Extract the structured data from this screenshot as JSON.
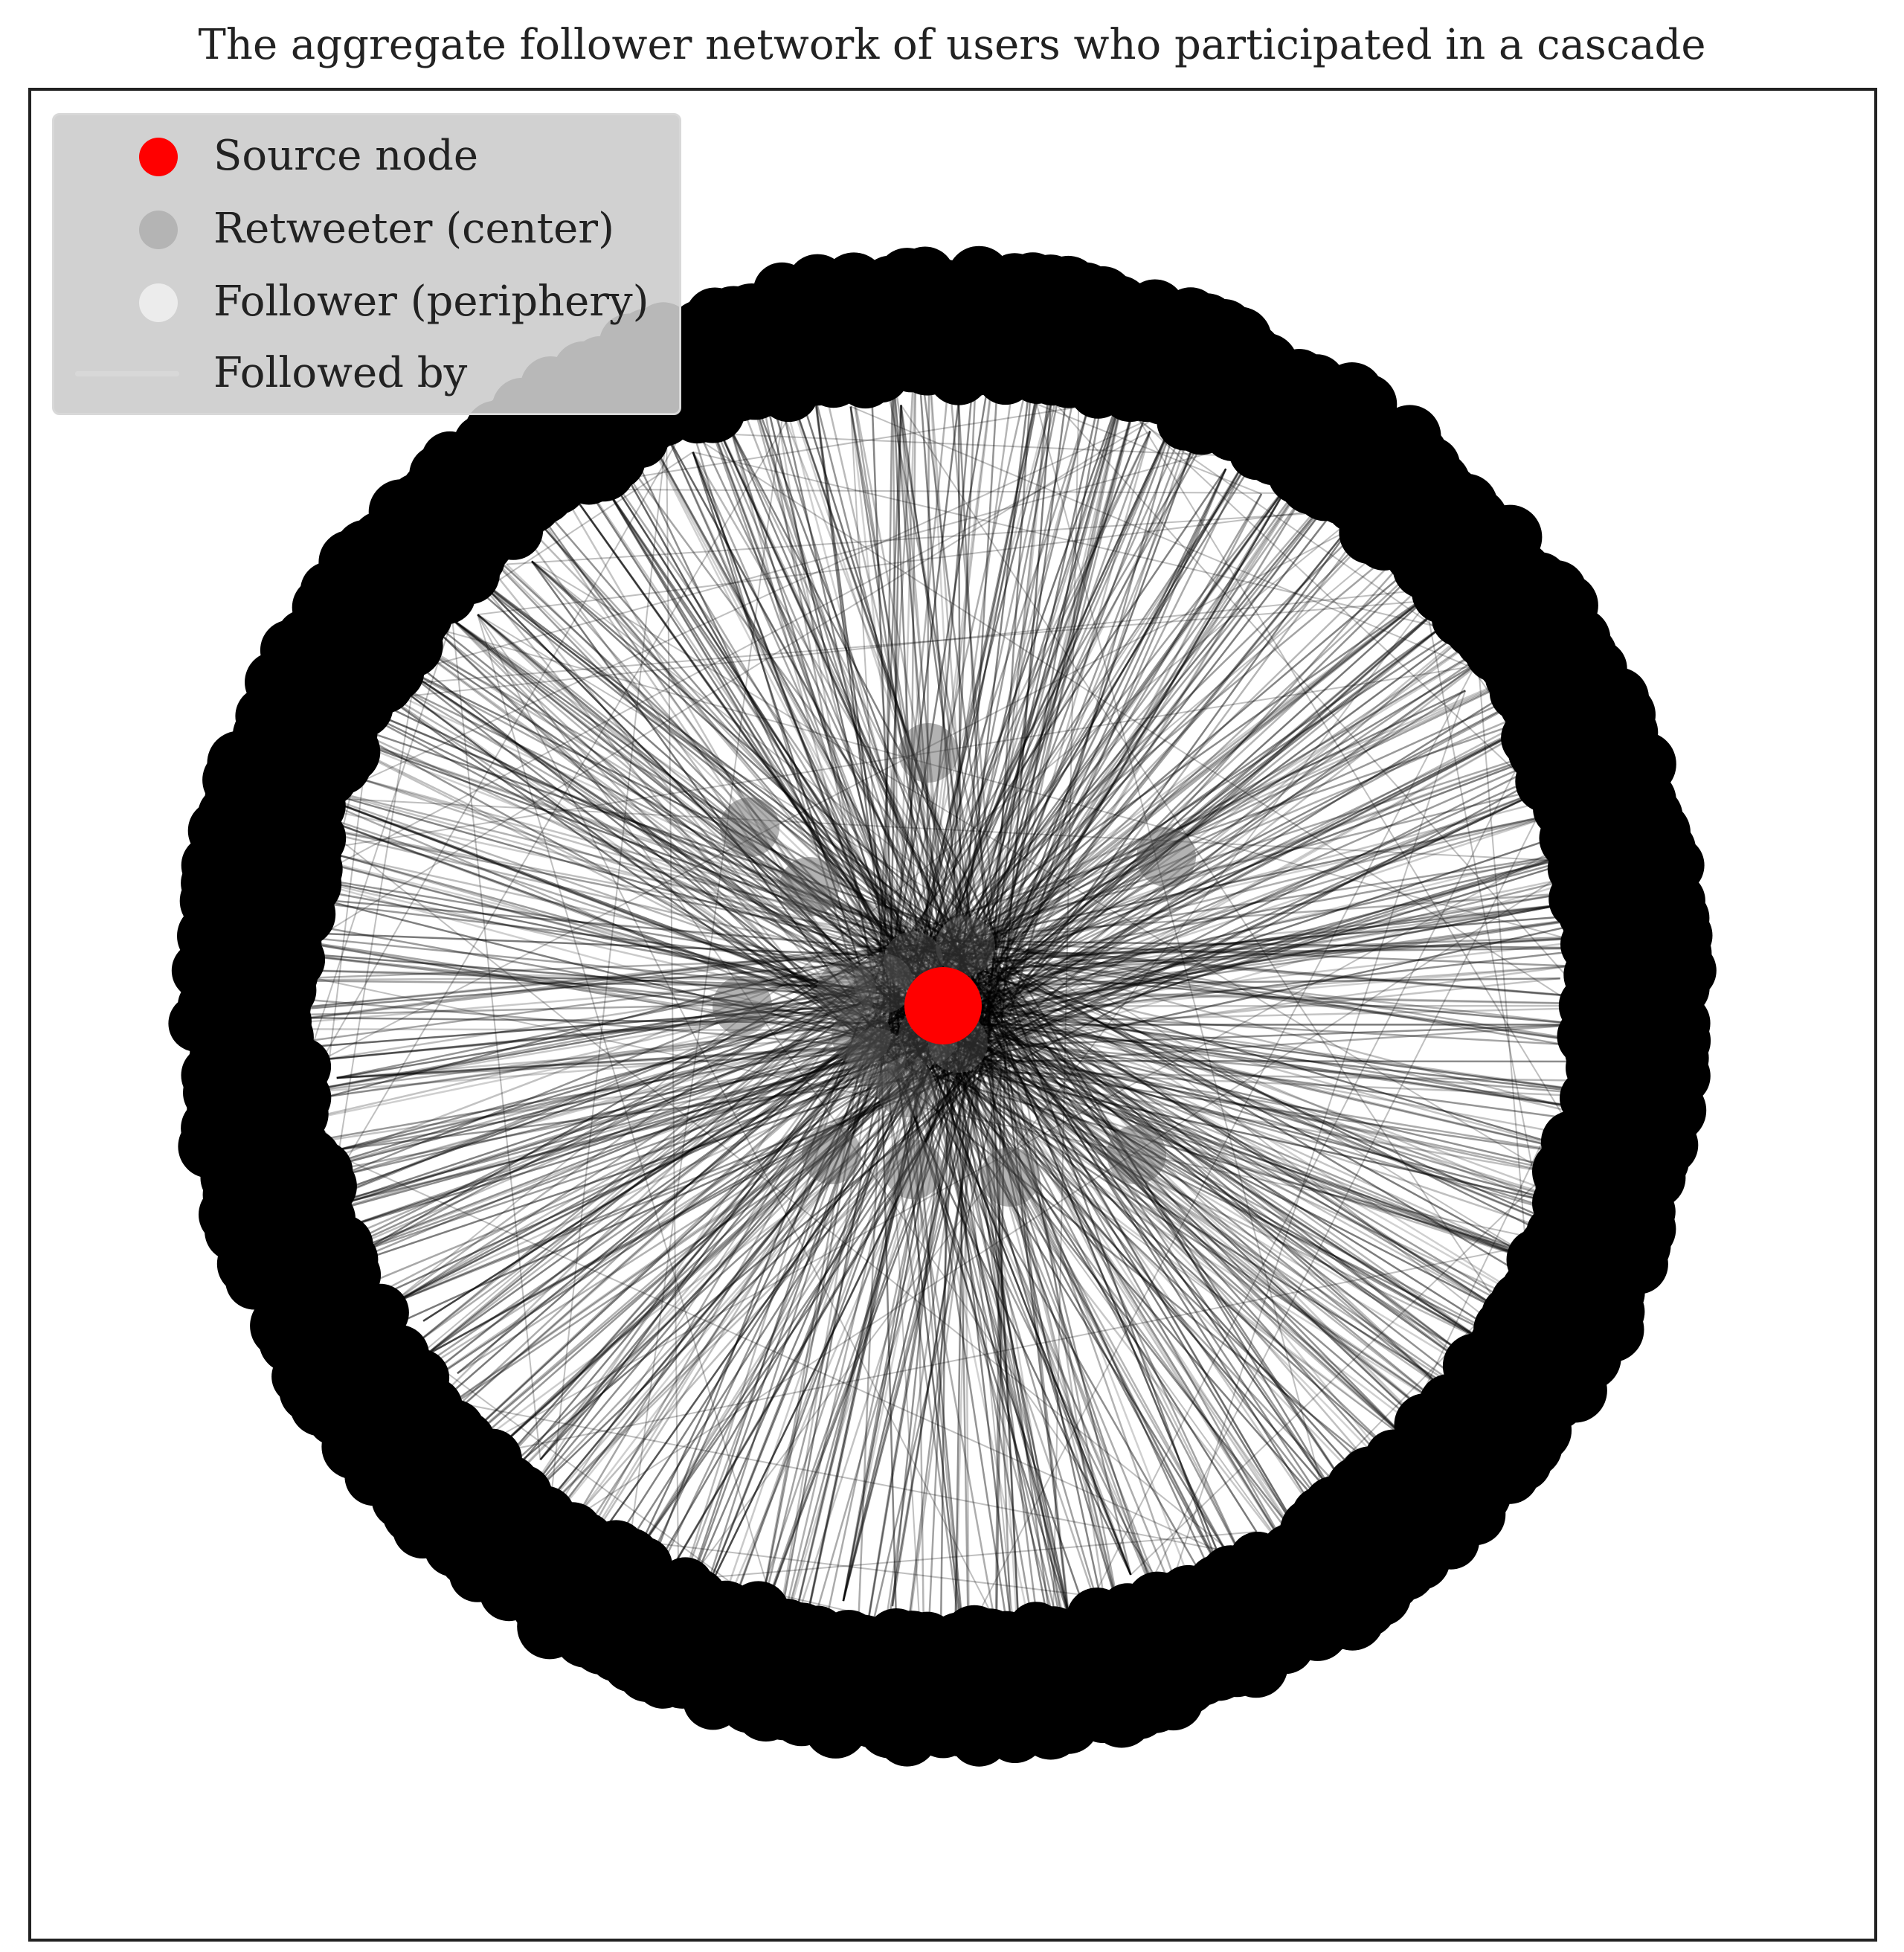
{
  "title": "The aggregate follower network of users who participated in a cascade",
  "colors": {
    "source": "#ff0000",
    "retweeter": "#b4b4b4",
    "follower": "#ececec",
    "edge": "#d8d8d8",
    "node_fill": "#000000",
    "frame": "#222222"
  },
  "legend": {
    "items": [
      {
        "label": "Source node",
        "marker": "circle",
        "color": "#ff0000"
      },
      {
        "label": "Retweeter (center)",
        "marker": "circle",
        "color": "#b4b4b4"
      },
      {
        "label": "Follower (periphery)",
        "marker": "circle",
        "color": "#ececec"
      },
      {
        "label": "Followed by",
        "marker": "line",
        "color": "#d8d8d8"
      }
    ]
  }
}
